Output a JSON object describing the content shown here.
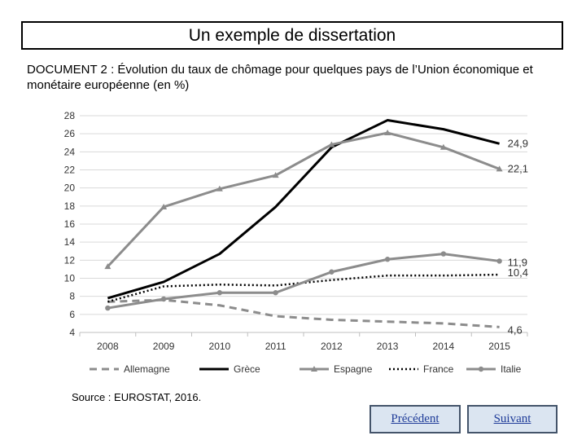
{
  "header": {
    "title": "Un exemple de dissertation"
  },
  "document": {
    "caption": "DOCUMENT 2 : Évolution du taux de chômage pour quelques pays de l’Union économique et monétaire européenne (en %)",
    "source": "Source : EUROSTAT, 2016."
  },
  "nav": {
    "prev_label": "Précédent",
    "next_label": "Suivant"
  },
  "chart_data": {
    "type": "line",
    "title": "",
    "xlabel": "",
    "ylabel": "",
    "x": [
      "2008",
      "2009",
      "2010",
      "2011",
      "2012",
      "2013",
      "2014",
      "2015"
    ],
    "ylim": [
      4,
      28
    ],
    "yticks": [
      4,
      6,
      8,
      10,
      12,
      14,
      16,
      18,
      20,
      22,
      24,
      26,
      28
    ],
    "grid": true,
    "legend_position": "bottom",
    "series": [
      {
        "name": "Allemagne",
        "values": [
          7.4,
          7.6,
          7.0,
          5.8,
          5.4,
          5.2,
          5.0,
          4.6
        ],
        "end_label": "4,6",
        "color": "#8c8c8c",
        "style": "dashed",
        "marker": "none"
      },
      {
        "name": "Grèce",
        "values": [
          7.8,
          9.6,
          12.7,
          17.9,
          24.5,
          27.5,
          26.5,
          24.9
        ],
        "end_label": "24,9",
        "color": "#000000",
        "style": "solid",
        "marker": "none"
      },
      {
        "name": "Espagne",
        "values": [
          11.3,
          17.9,
          19.9,
          21.4,
          24.8,
          26.1,
          24.5,
          22.1
        ],
        "end_label": "22,1",
        "color": "#8c8c8c",
        "style": "solid",
        "marker": "triangle"
      },
      {
        "name": "France",
        "values": [
          7.4,
          9.1,
          9.3,
          9.2,
          9.8,
          10.3,
          10.3,
          10.4
        ],
        "end_label": "10,4",
        "color": "#000000",
        "style": "dotted",
        "marker": "none"
      },
      {
        "name": "Italie",
        "values": [
          6.7,
          7.7,
          8.4,
          8.4,
          10.7,
          12.1,
          12.7,
          11.9
        ],
        "end_label": "11,9",
        "color": "#8c8c8c",
        "style": "solid",
        "marker": "circle"
      }
    ]
  }
}
